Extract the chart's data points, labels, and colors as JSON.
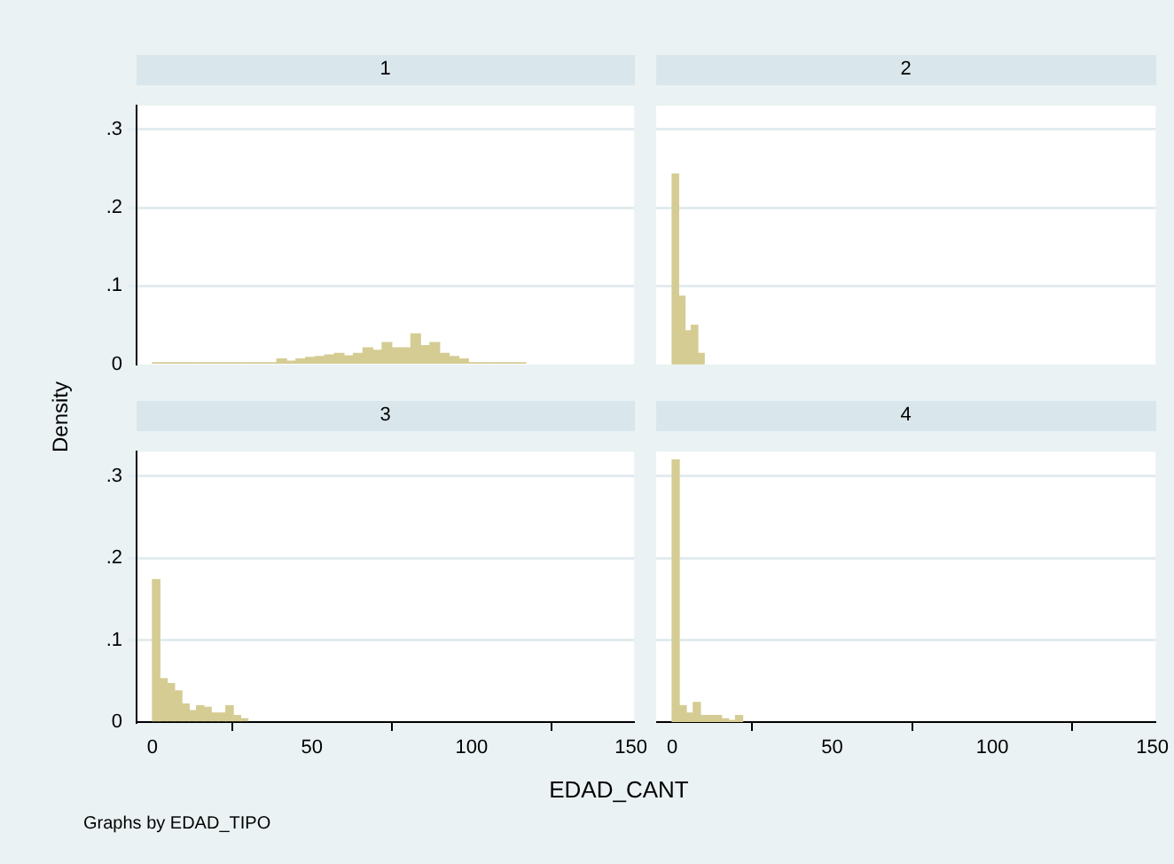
{
  "chart_data": [
    {
      "type": "histogram",
      "title": "1",
      "ylabel": "Density",
      "bins": [
        0,
        3,
        6,
        9,
        12,
        15,
        18,
        21,
        24,
        27,
        30,
        33,
        36,
        39,
        42,
        45,
        48,
        51,
        54,
        57,
        60,
        63,
        66,
        69,
        72,
        75,
        78,
        81,
        84,
        87,
        90,
        93,
        96,
        99,
        102,
        105,
        108,
        111,
        114,
        117
      ],
      "values": [
        0.002,
        0.002,
        0.002,
        0.002,
        0.002,
        0.002,
        0.002,
        0.002,
        0.002,
        0.002,
        0.002,
        0.002,
        0.002,
        0.007,
        0.004,
        0.007,
        0.009,
        0.01,
        0.012,
        0.014,
        0.011,
        0.014,
        0.021,
        0.018,
        0.028,
        0.021,
        0.021,
        0.039,
        0.024,
        0.028,
        0.014,
        0.01,
        0.007,
        0.002,
        0.002,
        0.002,
        0.002,
        0.002,
        0.002
      ],
      "color": "#d5cc93",
      "xlim": [
        -5,
        151
      ],
      "ylim": [
        0,
        0.33
      ],
      "yticks": [
        0,
        {
          "value": 0.1,
          "label": ".1"
        },
        {
          "value": 0.2,
          "label": ".2"
        },
        {
          "value": 0.3,
          "label": ".3"
        }
      ],
      "grid": "y",
      "tick_labels": "y"
    },
    {
      "type": "histogram",
      "title": "2",
      "bins": [
        0,
        2,
        4,
        6,
        8,
        10
      ],
      "values": [
        0.243,
        0.087,
        0.043,
        0.05,
        0.014
      ],
      "color": "#d5cc93",
      "xlim": [
        -5,
        151
      ],
      "ylim": [
        0,
        0.33
      ],
      "grid": "y",
      "tick_labels": false
    },
    {
      "type": "histogram",
      "title": "3",
      "xlabel": "EDAD_CANT",
      "annotations": [
        "Graphs by EDAD_TIPO"
      ],
      "bins": [
        0,
        2.3,
        4.6,
        6.9,
        9.2,
        11.5,
        13.8,
        16.1,
        18.4,
        20.7,
        23,
        25.3,
        27.6,
        29.9
      ],
      "values": [
        0.174,
        0.053,
        0.047,
        0.038,
        0.022,
        0.014,
        0.02,
        0.018,
        0.011,
        0.011,
        0.02,
        0.008,
        0.004
      ],
      "color": "#d5cc93",
      "xlim": [
        -5,
        151
      ],
      "ylim": [
        0,
        0.33
      ],
      "xticks": [
        0,
        50,
        100,
        150
      ],
      "yticks": [
        0,
        {
          "value": 0.1,
          "label": ".1"
        },
        {
          "value": 0.2,
          "label": ".2"
        },
        {
          "value": 0.3,
          "label": ".3"
        }
      ],
      "grid": "y"
    },
    {
      "type": "histogram",
      "title": "4",
      "bins": [
        0,
        2.2,
        4.4,
        6.6,
        8.8,
        11,
        13.2,
        15.4,
        17.6,
        19.8,
        22
      ],
      "values": [
        0.32,
        0.02,
        0.011,
        0.024,
        0.008,
        0.008,
        0.008,
        0.004,
        0.002,
        0.008
      ],
      "color": "#d5cc93",
      "xlim": [
        -5,
        151
      ],
      "ylim": [
        0,
        0.33
      ],
      "xticks": [
        0,
        50,
        100,
        150
      ],
      "grid": "y",
      "tick_labels": "x"
    }
  ]
}
